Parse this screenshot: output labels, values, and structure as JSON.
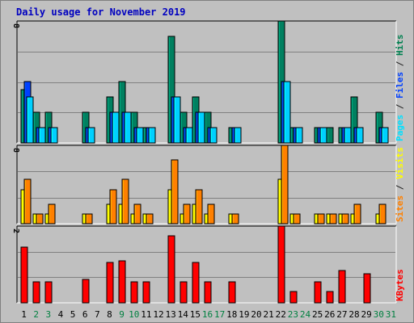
{
  "title": "Daily usage for November 2019",
  "chart_data": [
    {
      "type": "bar",
      "panel": "hits-files-pages",
      "ylim": [
        0,
        8
      ],
      "y_tick_label": "8",
      "right_label": [
        {
          "text": "Pages",
          "color": "#00e0ff"
        },
        {
          "text": " / ",
          "color": "#202020"
        },
        {
          "text": "Files",
          "color": "#0040ff"
        },
        {
          "text": " / ",
          "color": "#202020"
        },
        {
          "text": "Hits",
          "color": "#008050"
        }
      ],
      "categories": [
        "1",
        "2",
        "3",
        "4",
        "5",
        "6",
        "7",
        "8",
        "9",
        "10",
        "11",
        "12",
        "13",
        "14",
        "15",
        "16",
        "17",
        "18",
        "19",
        "20",
        "21",
        "22",
        "23",
        "24",
        "25",
        "26",
        "27",
        "28",
        "29",
        "30",
        "31"
      ],
      "series": [
        {
          "name": "Hits",
          "color": "#008060",
          "values": [
            3.5,
            2,
            2,
            0,
            0,
            2,
            0,
            3,
            4,
            2,
            1,
            0,
            7,
            2,
            3,
            2,
            0,
            1,
            0,
            0,
            0,
            8,
            1,
            0,
            1,
            1,
            1,
            3,
            0,
            2,
            0
          ]
        },
        {
          "name": "Files",
          "color": "#0040ff",
          "values": [
            4,
            1,
            1,
            0,
            0,
            1,
            0,
            2,
            2,
            1,
            1,
            0,
            3,
            1,
            2,
            1,
            0,
            1,
            0,
            0,
            0,
            4,
            1,
            0,
            1,
            0,
            1,
            1,
            0,
            1,
            0
          ]
        },
        {
          "name": "Pages",
          "color": "#00d0ff",
          "values": [
            3,
            1,
            1,
            0,
            0,
            1,
            0,
            2,
            2,
            1,
            1,
            0,
            3,
            1,
            2,
            1,
            0,
            1,
            0,
            0,
            0,
            4,
            1,
            0,
            1,
            0,
            1,
            1,
            0,
            1,
            0
          ]
        }
      ]
    },
    {
      "type": "bar",
      "panel": "visits-sites",
      "ylim": [
        0,
        8
      ],
      "y_tick_label": "8",
      "right_label": [
        {
          "text": "Sites",
          "color": "#ff8000"
        },
        {
          "text": " / ",
          "color": "#202020"
        },
        {
          "text": "Visits",
          "color": "#ffff00"
        }
      ],
      "categories": [
        "1",
        "2",
        "3",
        "4",
        "5",
        "6",
        "7",
        "8",
        "9",
        "10",
        "11",
        "12",
        "13",
        "14",
        "15",
        "16",
        "17",
        "18",
        "19",
        "20",
        "21",
        "22",
        "23",
        "24",
        "25",
        "26",
        "27",
        "28",
        "29",
        "30",
        "31"
      ],
      "series": [
        {
          "name": "Visits",
          "color": "#ffff00",
          "values": [
            3.5,
            1,
            1,
            0,
            0,
            1,
            0,
            2,
            2,
            1,
            1,
            0,
            3.5,
            1,
            2,
            1,
            0,
            1,
            0,
            0,
            0,
            4.5,
            1,
            0,
            1,
            1,
            1,
            1,
            0,
            1,
            0
          ]
        },
        {
          "name": "Sites",
          "color": "#ff8000",
          "values": [
            4.5,
            1,
            2,
            0,
            0,
            1,
            0,
            3.5,
            4.5,
            2,
            1,
            0,
            6.5,
            2,
            3.5,
            2,
            0,
            1,
            0,
            0,
            0,
            8,
            1,
            0,
            1,
            1,
            1,
            2,
            0,
            2,
            0
          ]
        }
      ]
    },
    {
      "type": "bar",
      "panel": "kbytes",
      "ylim": [
        0,
        2
      ],
      "y_tick_label": "2",
      "right_label": [
        {
          "text": "KBytes",
          "color": "#ff0000"
        }
      ],
      "categories": [
        "1",
        "2",
        "3",
        "4",
        "5",
        "6",
        "7",
        "8",
        "9",
        "10",
        "11",
        "12",
        "13",
        "14",
        "15",
        "16",
        "17",
        "18",
        "19",
        "20",
        "21",
        "22",
        "23",
        "24",
        "25",
        "26",
        "27",
        "28",
        "29",
        "30",
        "31"
      ],
      "series": [
        {
          "name": "KBytes",
          "color": "#ff0000",
          "values": [
            1.45,
            0.55,
            0.55,
            0,
            0,
            0.6,
            0,
            1.05,
            1.1,
            0.55,
            0.55,
            0,
            1.75,
            0.55,
            1.05,
            0.55,
            0,
            0.55,
            0,
            0,
            0,
            2,
            0.3,
            0,
            0.55,
            0.3,
            0.85,
            0,
            0.75,
            0,
            0
          ]
        }
      ]
    }
  ],
  "x_axis": {
    "labels": [
      "1",
      "2",
      "3",
      "4",
      "5",
      "6",
      "7",
      "8",
      "9",
      "10",
      "11",
      "12",
      "13",
      "14",
      "15",
      "16",
      "17",
      "18",
      "19",
      "20",
      "21",
      "22",
      "23",
      "24",
      "25",
      "26",
      "27",
      "28",
      "29",
      "30",
      "31"
    ],
    "weekend_days": [
      "2",
      "3",
      "9",
      "10",
      "16",
      "17",
      "23",
      "24",
      "30",
      "31"
    ],
    "weekday_color": "#000000",
    "weekend_color": "#008040"
  }
}
